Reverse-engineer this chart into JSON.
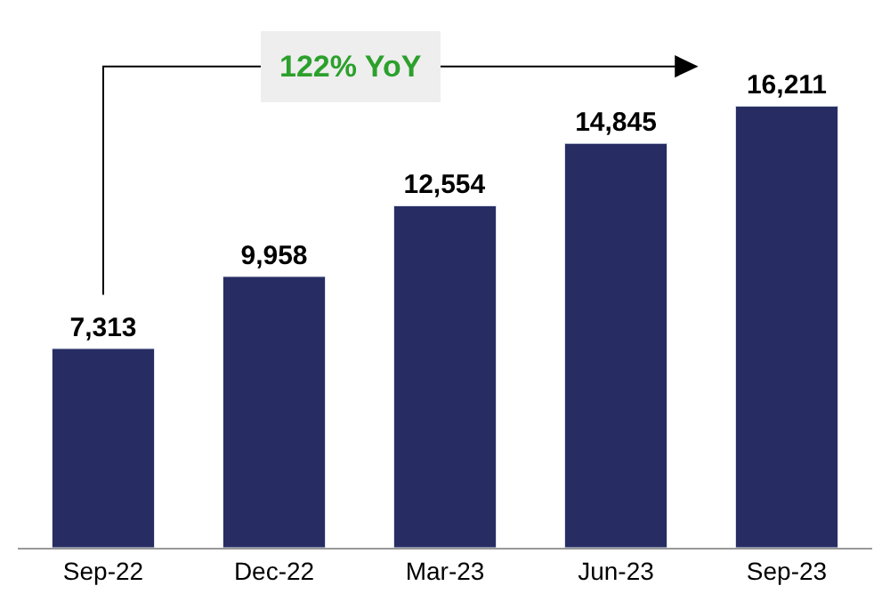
{
  "chart_data": {
    "type": "bar",
    "categories": [
      "Sep-22",
      "Dec-22",
      "Mar-23",
      "Jun-23",
      "Sep-23"
    ],
    "values": [
      7313,
      9958,
      12554,
      14845,
      16211
    ],
    "value_labels": [
      "7,313",
      "9,958",
      "12,554",
      "14,845",
      "16,211"
    ],
    "color": "#272d63",
    "annotations": [
      "122% YoY"
    ]
  }
}
